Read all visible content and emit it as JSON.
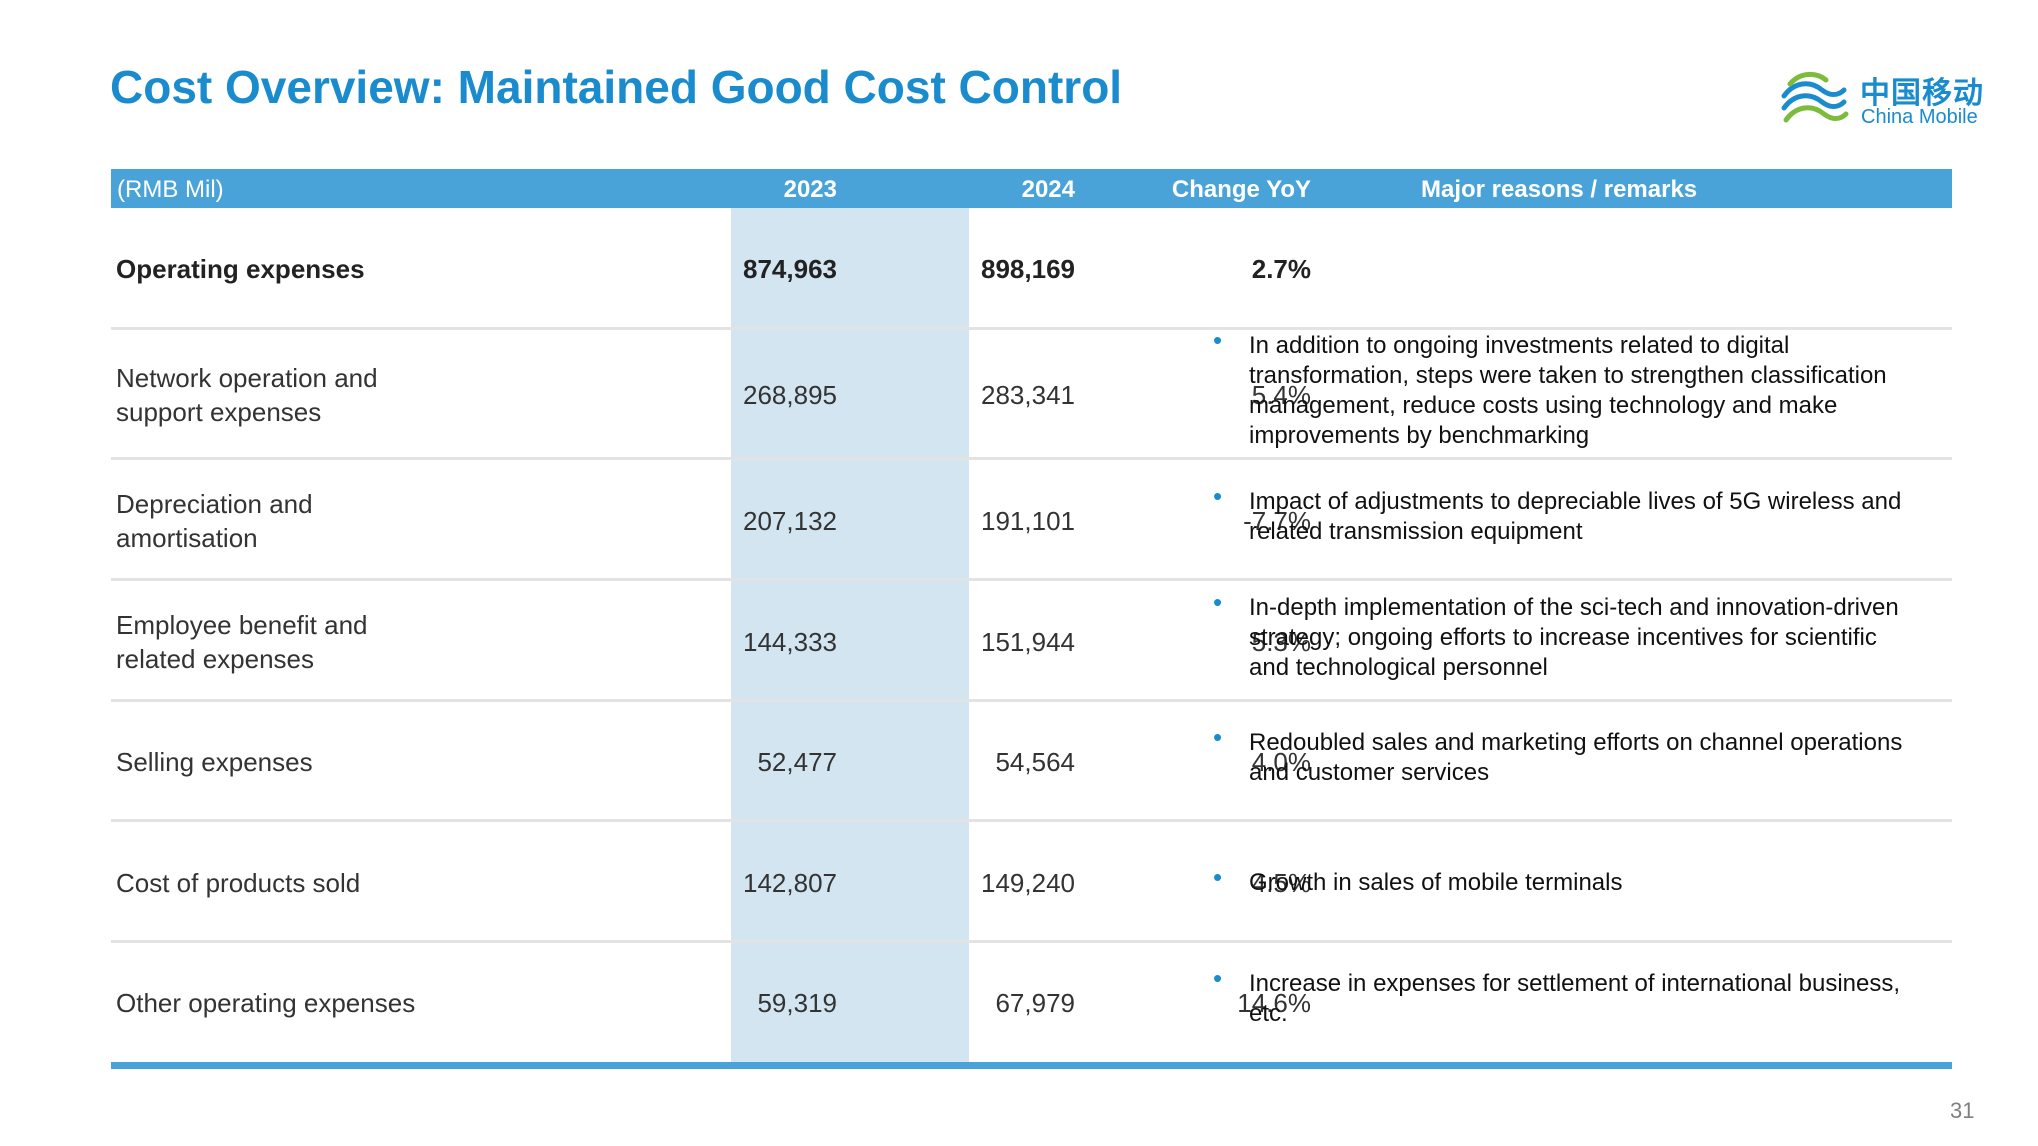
{
  "page": {
    "title": "Cost Overview: Maintained Good Cost Control",
    "page_number": "31"
  },
  "logo": {
    "cn_text": "中国移动",
    "en_text": "China Mobile",
    "icon": "china-mobile-logo-icon",
    "color": "#1a8ccd"
  },
  "colors": {
    "header": "#4aa3d8",
    "title": "#1a8ccd",
    "highlight_column": "#d2e5f1"
  },
  "table": {
    "headers": {
      "unit": "(RMB Mil)",
      "y2023": "2023",
      "y2024": "2024",
      "change": "Change YoY",
      "remarks": "Major reasons / remarks"
    },
    "rows": [
      {
        "label_lines": [
          "Operating expenses"
        ],
        "y2023": "874,963",
        "y2024": "898,169",
        "change": "2.7%",
        "remarks": [],
        "bold": true
      },
      {
        "label_lines": [
          "Network operation and",
          "support expenses"
        ],
        "y2023": "268,895",
        "y2024": "283,341",
        "change": "5.4%",
        "remarks": [
          "In addition to ongoing investments related to digital",
          "transformation, steps were taken to strengthen classification",
          "management, reduce costs using technology and make",
          "improvements by benchmarking"
        ]
      },
      {
        "label_lines": [
          "Depreciation and",
          "amortisation"
        ],
        "y2023": "207,132",
        "y2024": "191,101",
        "change": "-7.7%",
        "remarks": [
          "Impact of adjustments to depreciable lives of 5G wireless and",
          "related transmission equipment"
        ]
      },
      {
        "label_lines": [
          "Employee benefit and",
          "related expenses"
        ],
        "y2023": "144,333",
        "y2024": "151,944",
        "change": "5.3%",
        "remarks": [
          "In-depth implementation of the sci-tech and innovation-driven",
          "strategy; ongoing efforts to increase incentives for scientific",
          "and technological personnel"
        ]
      },
      {
        "label_lines": [
          "Selling expenses"
        ],
        "y2023": "52,477",
        "y2024": "54,564",
        "change": "4.0%",
        "remarks": [
          "Redoubled sales and marketing efforts on channel operations",
          "and customer services"
        ]
      },
      {
        "label_lines": [
          "Cost of products sold"
        ],
        "y2023": "142,807",
        "y2024": "149,240",
        "change": "4.5%",
        "remarks": [
          "Growth in sales of mobile terminals"
        ]
      },
      {
        "label_lines": [
          "Other operating expenses"
        ],
        "y2023": "59,319",
        "y2024": "67,979",
        "change": "14.6%",
        "remarks": [
          "Increase in expenses for settlement of international business,",
          "etc."
        ]
      }
    ]
  }
}
